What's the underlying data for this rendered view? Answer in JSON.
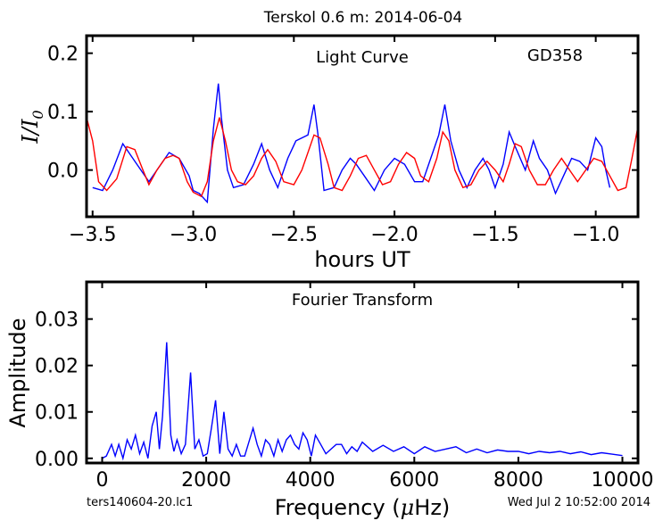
{
  "figure": {
    "title": "Terskol 0.6 m:  2014-06-04",
    "footer_left": "ters140604-20.lc1",
    "footer_right": "Wed Jul  2 10:52:00 2014"
  },
  "chart_data": [
    {
      "type": "line",
      "title": "Light Curve",
      "annotation": "GD358",
      "xlabel": "hours UT",
      "ylabel": "I/I0",
      "ylabel_main": "I/I",
      "ylabel_sub": "0",
      "xlim": [
        -3.53,
        -0.79
      ],
      "ylim": [
        -0.08,
        0.23
      ],
      "xticks": [
        -3.5,
        -3.0,
        -2.5,
        -2.0,
        -1.5,
        -1.0
      ],
      "xtick_labels": [
        "−3.5",
        "−3.0",
        "−2.5",
        "−2.0",
        "−1.5",
        "−1.0"
      ],
      "yticks": [
        0.0,
        0.1,
        0.2
      ],
      "ytick_labels": [
        "0.0",
        "0.1",
        "0.2"
      ],
      "series": [
        {
          "color": "#0000ff",
          "x": [
            -3.5,
            -3.45,
            -3.4,
            -3.35,
            -3.32,
            -3.28,
            -3.22,
            -3.18,
            -3.12,
            -3.07,
            -3.02,
            -3.0,
            -2.97,
            -2.93,
            -2.9,
            -2.875,
            -2.86,
            -2.83,
            -2.8,
            -2.75,
            -2.7,
            -2.66,
            -2.62,
            -2.58,
            -2.53,
            -2.49,
            -2.43,
            -2.4,
            -2.38,
            -2.35,
            -2.3,
            -2.26,
            -2.22,
            -2.19,
            -2.15,
            -2.1,
            -2.05,
            -2.0,
            -1.95,
            -1.9,
            -1.86,
            -1.82,
            -1.78,
            -1.75,
            -1.72,
            -1.68,
            -1.64,
            -1.6,
            -1.56,
            -1.53,
            -1.5,
            -1.46,
            -1.43,
            -1.4,
            -1.35,
            -1.31,
            -1.28,
            -1.24,
            -1.2,
            -1.16,
            -1.12,
            -1.08,
            -1.04,
            -1.0,
            -0.97,
            -0.95,
            -0.93
          ],
          "y": [
            -0.03,
            -0.035,
            0.0,
            0.045,
            0.03,
            0.01,
            -0.02,
            0.0,
            0.03,
            0.02,
            -0.01,
            -0.035,
            -0.04,
            -0.055,
            0.07,
            0.148,
            0.09,
            0.0,
            -0.03,
            -0.025,
            0.01,
            0.045,
            0.0,
            -0.03,
            0.02,
            0.05,
            0.06,
            0.112,
            0.06,
            -0.035,
            -0.03,
            0.0,
            0.02,
            0.01,
            -0.01,
            -0.035,
            0.0,
            0.02,
            0.01,
            -0.02,
            -0.02,
            0.02,
            0.06,
            0.112,
            0.05,
            0.0,
            -0.03,
            0.0,
            0.02,
            0.0,
            -0.03,
            0.01,
            0.065,
            0.04,
            0.0,
            0.05,
            0.02,
            0.0,
            -0.04,
            -0.01,
            0.02,
            0.015,
            0.0,
            0.055,
            0.04,
            0.0,
            -0.03
          ]
        },
        {
          "color": "#ff0000",
          "x": [
            -3.53,
            -3.5,
            -3.47,
            -3.43,
            -3.38,
            -3.33,
            -3.29,
            -3.25,
            -3.22,
            -3.18,
            -3.14,
            -3.1,
            -3.07,
            -3.03,
            -3.0,
            -2.96,
            -2.93,
            -2.9,
            -2.87,
            -2.84,
            -2.81,
            -2.78,
            -2.74,
            -2.7,
            -2.66,
            -2.63,
            -2.59,
            -2.55,
            -2.5,
            -2.46,
            -2.43,
            -2.4,
            -2.37,
            -2.33,
            -2.3,
            -2.26,
            -2.22,
            -2.18,
            -2.14,
            -2.1,
            -2.06,
            -2.02,
            -1.98,
            -1.94,
            -1.9,
            -1.87,
            -1.83,
            -1.79,
            -1.76,
            -1.73,
            -1.7,
            -1.66,
            -1.62,
            -1.58,
            -1.54,
            -1.5,
            -1.46,
            -1.43,
            -1.4,
            -1.37,
            -1.33,
            -1.29,
            -1.25,
            -1.21,
            -1.17,
            -1.13,
            -1.09,
            -1.05,
            -1.01,
            -0.97,
            -0.93,
            -0.89,
            -0.85,
            -0.82,
            -0.79
          ],
          "y": [
            0.09,
            0.05,
            -0.02,
            -0.035,
            -0.015,
            0.04,
            0.035,
            0.0,
            -0.025,
            0.0,
            0.02,
            0.025,
            0.02,
            -0.02,
            -0.038,
            -0.045,
            -0.02,
            0.05,
            0.09,
            0.05,
            0.0,
            -0.02,
            -0.025,
            -0.01,
            0.02,
            0.035,
            0.015,
            -0.02,
            -0.025,
            0.0,
            0.03,
            0.06,
            0.055,
            0.01,
            -0.03,
            -0.035,
            -0.01,
            0.02,
            0.025,
            0.0,
            -0.025,
            -0.02,
            0.01,
            0.03,
            0.02,
            -0.01,
            -0.02,
            0.02,
            0.065,
            0.05,
            0.0,
            -0.03,
            -0.025,
            0.0,
            0.015,
            0.0,
            -0.02,
            0.01,
            0.045,
            0.04,
            0.0,
            -0.025,
            -0.025,
            0.0,
            0.02,
            0.0,
            -0.02,
            0.0,
            0.02,
            0.015,
            -0.01,
            -0.035,
            -0.03,
            0.02,
            0.075
          ]
        }
      ]
    },
    {
      "type": "line",
      "title": "Fourier Transform",
      "xlabel": "Frequency (μHz)",
      "xlabel_main": "Frequency (",
      "xlabel_mu": "μ",
      "xlabel_unit": "Hz)",
      "ylabel": "Amplitude",
      "xlim": [
        -300,
        10300
      ],
      "ylim": [
        -0.001,
        0.038
      ],
      "xticks": [
        0,
        2000,
        4000,
        6000,
        8000,
        10000
      ],
      "xtick_labels": [
        "0",
        "2000",
        "4000",
        "6000",
        "8000",
        "10000"
      ],
      "yticks": [
        0.0,
        0.01,
        0.02,
        0.03
      ],
      "ytick_labels": [
        "0.00",
        "0.01",
        "0.02",
        "0.03"
      ],
      "series": [
        {
          "color": "#0000ff",
          "x": [
            0,
            80,
            180,
            250,
            320,
            400,
            480,
            560,
            640,
            720,
            800,
            880,
            960,
            1040,
            1100,
            1160,
            1240,
            1320,
            1380,
            1440,
            1520,
            1600,
            1700,
            1780,
            1860,
            1940,
            2020,
            2100,
            2180,
            2260,
            2340,
            2420,
            2500,
            2580,
            2660,
            2740,
            2820,
            2900,
            2980,
            3060,
            3140,
            3220,
            3300,
            3380,
            3460,
            3540,
            3620,
            3700,
            3780,
            3860,
            3940,
            4020,
            4100,
            4200,
            4300,
            4400,
            4500,
            4600,
            4700,
            4800,
            4900,
            5000,
            5200,
            5400,
            5600,
            5800,
            6000,
            6200,
            6400,
            6600,
            6800,
            7000,
            7200,
            7400,
            7600,
            7800,
            8000,
            8200,
            8400,
            8600,
            8800,
            9000,
            9200,
            9400,
            9600,
            9800,
            10000
          ],
          "y": [
            0.0,
            0.0005,
            0.003,
            0.0005,
            0.003,
            0.0,
            0.004,
            0.002,
            0.005,
            0.001,
            0.0035,
            0.0,
            0.007,
            0.01,
            0.002,
            0.009,
            0.025,
            0.005,
            0.0015,
            0.004,
            0.001,
            0.003,
            0.0185,
            0.002,
            0.004,
            0.0005,
            0.001,
            0.0065,
            0.0125,
            0.001,
            0.01,
            0.002,
            0.0005,
            0.003,
            0.0005,
            0.0005,
            0.0035,
            0.0065,
            0.003,
            0.0005,
            0.004,
            0.003,
            0.0005,
            0.004,
            0.0015,
            0.004,
            0.005,
            0.003,
            0.002,
            0.0055,
            0.004,
            0.0005,
            0.005,
            0.003,
            0.001,
            0.002,
            0.003,
            0.003,
            0.001,
            0.0025,
            0.0015,
            0.0035,
            0.0015,
            0.0028,
            0.0015,
            0.0025,
            0.001,
            0.0025,
            0.0015,
            0.002,
            0.0025,
            0.0012,
            0.002,
            0.0012,
            0.0018,
            0.0015,
            0.0015,
            0.001,
            0.0015,
            0.0012,
            0.0015,
            0.001,
            0.0014,
            0.0008,
            0.0012,
            0.0009,
            0.0006
          ]
        }
      ]
    }
  ]
}
